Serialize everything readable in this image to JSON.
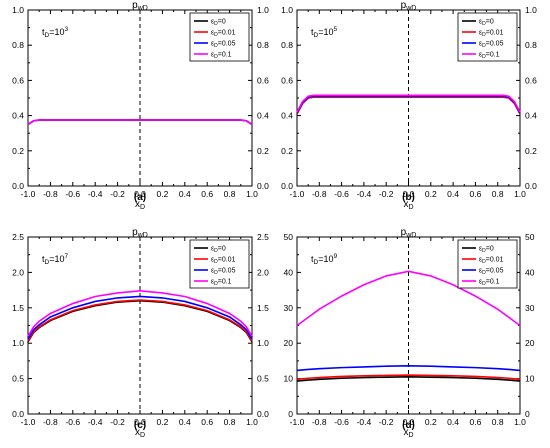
{
  "chart_data": [
    {
      "type": "line",
      "panel_label": "(a)",
      "top_label": "p",
      "top_label_sub": "wD",
      "xlabel": "x",
      "xlabel_sub": "D",
      "annotation": {
        "base": "t",
        "sub": "D",
        "text": "=10",
        "sup": "3"
      },
      "xlim": [
        -1.0,
        1.0
      ],
      "ylim": [
        0.0,
        1.0
      ],
      "xticks": [
        "-1.0",
        "-0.8",
        "-0.6",
        "-0.4",
        "-0.2",
        "0.0",
        "0.2",
        "0.4",
        "0.6",
        "0.8",
        "1.0"
      ],
      "yticks": [
        "0.0",
        "0.2",
        "0.4",
        "0.6",
        "0.8",
        "1.0"
      ],
      "right_yticks": [
        "0.0",
        "0.2",
        "0.4",
        "0.6",
        "0.8",
        "1.0"
      ],
      "vertical_line_at": 0.0,
      "x": [
        -1.0,
        -0.95,
        -0.9,
        -0.8,
        -0.6,
        -0.4,
        -0.2,
        0.0,
        0.2,
        0.4,
        0.6,
        0.8,
        0.9,
        0.95,
        1.0
      ],
      "series": [
        {
          "name": {
            "base": "ε",
            "sub": "D",
            "text": "=0"
          },
          "color": "#000000",
          "values": [
            0.35,
            0.37,
            0.375,
            0.375,
            0.375,
            0.375,
            0.375,
            0.375,
            0.375,
            0.375,
            0.375,
            0.375,
            0.375,
            0.37,
            0.35
          ]
        },
        {
          "name": {
            "base": "ε",
            "sub": "D",
            "text": "=0.01"
          },
          "color": "#ff0000",
          "values": [
            0.35,
            0.37,
            0.375,
            0.375,
            0.375,
            0.375,
            0.375,
            0.375,
            0.375,
            0.375,
            0.375,
            0.375,
            0.375,
            0.37,
            0.35
          ]
        },
        {
          "name": {
            "base": "ε",
            "sub": "D",
            "text": "=0.05"
          },
          "color": "#0000ff",
          "values": [
            0.35,
            0.37,
            0.375,
            0.375,
            0.375,
            0.375,
            0.375,
            0.375,
            0.375,
            0.375,
            0.375,
            0.375,
            0.375,
            0.37,
            0.35
          ]
        },
        {
          "name": {
            "base": "ε",
            "sub": "D",
            "text": "=0.1"
          },
          "color": "#ff00ff",
          "values": [
            0.35,
            0.37,
            0.375,
            0.375,
            0.375,
            0.375,
            0.375,
            0.375,
            0.375,
            0.375,
            0.375,
            0.375,
            0.375,
            0.37,
            0.35
          ]
        }
      ]
    },
    {
      "type": "line",
      "panel_label": "(b)",
      "top_label": "p",
      "top_label_sub": "wD",
      "xlabel": "x",
      "xlabel_sub": "D",
      "annotation": {
        "base": "t",
        "sub": "D",
        "text": "=10",
        "sup": "5"
      },
      "xlim": [
        -1.0,
        1.0
      ],
      "ylim": [
        0.0,
        1.0
      ],
      "xticks": [
        "-1.0",
        "-0.8",
        "-0.6",
        "-0.4",
        "-0.2",
        "0.0",
        "0.2",
        "0.4",
        "0.6",
        "0.8",
        "1.0"
      ],
      "yticks": [
        "0.0",
        "0.2",
        "0.4",
        "0.6",
        "0.8",
        "1.0"
      ],
      "right_yticks": [
        "0.0",
        "0.2",
        "0.4",
        "0.6",
        "0.8",
        "1.0"
      ],
      "vertical_line_at": 0.0,
      "x": [
        -1.0,
        -0.95,
        -0.9,
        -0.85,
        -0.8,
        -0.6,
        -0.4,
        -0.2,
        0.0,
        0.2,
        0.4,
        0.6,
        0.8,
        0.85,
        0.9,
        0.95,
        1.0
      ],
      "series": [
        {
          "name": {
            "base": "ε",
            "sub": "D",
            "text": "=0"
          },
          "color": "#000000",
          "values": [
            0.41,
            0.47,
            0.5,
            0.505,
            0.505,
            0.505,
            0.505,
            0.505,
            0.505,
            0.505,
            0.505,
            0.505,
            0.505,
            0.505,
            0.5,
            0.47,
            0.41
          ]
        },
        {
          "name": {
            "base": "ε",
            "sub": "D",
            "text": "=0.01"
          },
          "color": "#ff0000",
          "values": [
            0.41,
            0.47,
            0.5,
            0.505,
            0.505,
            0.505,
            0.505,
            0.505,
            0.505,
            0.505,
            0.505,
            0.505,
            0.505,
            0.505,
            0.5,
            0.47,
            0.41
          ]
        },
        {
          "name": {
            "base": "ε",
            "sub": "D",
            "text": "=0.05"
          },
          "color": "#0000ff",
          "values": [
            0.415,
            0.475,
            0.505,
            0.51,
            0.51,
            0.51,
            0.51,
            0.51,
            0.51,
            0.51,
            0.51,
            0.51,
            0.51,
            0.51,
            0.505,
            0.475,
            0.415
          ]
        },
        {
          "name": {
            "base": "ε",
            "sub": "D",
            "text": "=0.1"
          },
          "color": "#ff00ff",
          "values": [
            0.42,
            0.48,
            0.51,
            0.515,
            0.515,
            0.515,
            0.515,
            0.515,
            0.515,
            0.515,
            0.515,
            0.515,
            0.515,
            0.515,
            0.51,
            0.48,
            0.42
          ]
        }
      ]
    },
    {
      "type": "line",
      "panel_label": "(c)",
      "top_label": "p",
      "top_label_sub": "wD",
      "xlabel": "x",
      "xlabel_sub": "D",
      "annotation": {
        "base": "t",
        "sub": "D",
        "text": "=10",
        "sup": "7"
      },
      "xlim": [
        -1.0,
        1.0
      ],
      "ylim": [
        0.0,
        2.5
      ],
      "xticks": [
        "-1.0",
        "-0.8",
        "-0.6",
        "-0.4",
        "-0.2",
        "0.0",
        "0.2",
        "0.4",
        "0.6",
        "0.8",
        "1.0"
      ],
      "yticks": [
        "0.0",
        "0.5",
        "1.0",
        "1.5",
        "2.0",
        "2.5"
      ],
      "right_yticks": [
        "0.0",
        "0.5",
        "1.0",
        "1.5",
        "2.0",
        "2.5"
      ],
      "vertical_line_at": 0.0,
      "x": [
        -1.0,
        -0.95,
        -0.9,
        -0.8,
        -0.6,
        -0.4,
        -0.2,
        0.0,
        0.2,
        0.4,
        0.6,
        0.8,
        0.9,
        0.95,
        1.0
      ],
      "series": [
        {
          "name": {
            "base": "ε",
            "sub": "D",
            "text": "=0"
          },
          "color": "#000000",
          "values": [
            1.02,
            1.15,
            1.22,
            1.32,
            1.45,
            1.53,
            1.58,
            1.6,
            1.58,
            1.53,
            1.45,
            1.32,
            1.22,
            1.15,
            1.02
          ]
        },
        {
          "name": {
            "base": "ε",
            "sub": "D",
            "text": "=0.01"
          },
          "color": "#ff0000",
          "values": [
            1.03,
            1.16,
            1.23,
            1.33,
            1.46,
            1.54,
            1.59,
            1.61,
            1.59,
            1.54,
            1.46,
            1.33,
            1.23,
            1.16,
            1.03
          ]
        },
        {
          "name": {
            "base": "ε",
            "sub": "D",
            "text": "=0.05"
          },
          "color": "#0000ff",
          "values": [
            1.06,
            1.19,
            1.26,
            1.37,
            1.5,
            1.59,
            1.64,
            1.66,
            1.64,
            1.59,
            1.5,
            1.37,
            1.26,
            1.19,
            1.06
          ]
        },
        {
          "name": {
            "base": "ε",
            "sub": "D",
            "text": "=0.1"
          },
          "color": "#ff00ff",
          "values": [
            1.1,
            1.23,
            1.31,
            1.42,
            1.56,
            1.66,
            1.71,
            1.74,
            1.71,
            1.66,
            1.56,
            1.42,
            1.31,
            1.23,
            1.1
          ]
        }
      ]
    },
    {
      "type": "line",
      "panel_label": "(d)",
      "top_label": "p",
      "top_label_sub": "wD",
      "xlabel": "x",
      "xlabel_sub": "D",
      "annotation": {
        "base": "t",
        "sub": "D",
        "text": "=10",
        "sup": "9"
      },
      "xlim": [
        -1.0,
        1.0
      ],
      "ylim": [
        0,
        50
      ],
      "xticks": [
        "-1.0",
        "-0.8",
        "-0.6",
        "-0.4",
        "-0.2",
        "0.0",
        "0.2",
        "0.4",
        "0.6",
        "0.8",
        "1.0"
      ],
      "yticks": [
        "0",
        "10",
        "20",
        "30",
        "40",
        "50"
      ],
      "right_yticks": [
        "0",
        "10",
        "20",
        "30",
        "40",
        "50"
      ],
      "vertical_line_at": 0.0,
      "x": [
        -1.0,
        -0.9,
        -0.8,
        -0.6,
        -0.4,
        -0.2,
        0.0,
        0.2,
        0.4,
        0.6,
        0.8,
        0.9,
        1.0
      ],
      "series": [
        {
          "name": {
            "base": "ε",
            "sub": "D",
            "text": "=0"
          },
          "color": "#000000",
          "values": [
            9.3,
            9.6,
            9.8,
            10.1,
            10.3,
            10.4,
            10.5,
            10.4,
            10.3,
            10.1,
            9.8,
            9.6,
            9.3
          ]
        },
        {
          "name": {
            "base": "ε",
            "sub": "D",
            "text": "=0.01"
          },
          "color": "#ff0000",
          "values": [
            9.8,
            10.1,
            10.3,
            10.6,
            10.8,
            10.9,
            11.0,
            10.9,
            10.8,
            10.6,
            10.3,
            10.1,
            9.8
          ]
        },
        {
          "name": {
            "base": "ε",
            "sub": "D",
            "text": "=0.05"
          },
          "color": "#0000ff",
          "values": [
            12.3,
            12.6,
            12.8,
            13.1,
            13.3,
            13.5,
            13.6,
            13.5,
            13.3,
            13.1,
            12.8,
            12.6,
            12.3
          ]
        },
        {
          "name": {
            "base": "ε",
            "sub": "D",
            "text": "=0.1"
          },
          "color": "#ff00ff",
          "values": [
            25.0,
            27.3,
            29.6,
            33.3,
            36.5,
            39.0,
            40.3,
            39.0,
            36.5,
            33.3,
            29.6,
            27.3,
            25.0
          ]
        }
      ]
    }
  ]
}
